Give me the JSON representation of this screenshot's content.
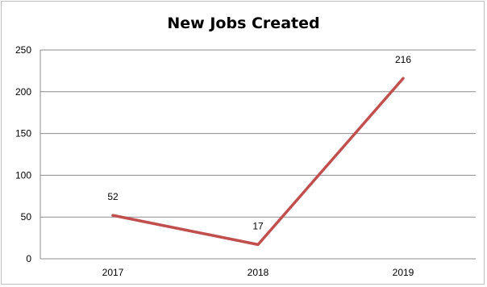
{
  "chart_data": {
    "type": "line",
    "title": "New Jobs Created",
    "categories": [
      "2017",
      "2018",
      "2019"
    ],
    "series": [
      {
        "values": [
          52,
          17,
          216
        ],
        "color": "#c0504d"
      }
    ],
    "data_labels": [
      "52",
      "17",
      "216"
    ],
    "ylim": [
      0,
      250
    ],
    "yticks": [
      0,
      50,
      100,
      150,
      200,
      250
    ],
    "grid": true,
    "legend": "none"
  }
}
